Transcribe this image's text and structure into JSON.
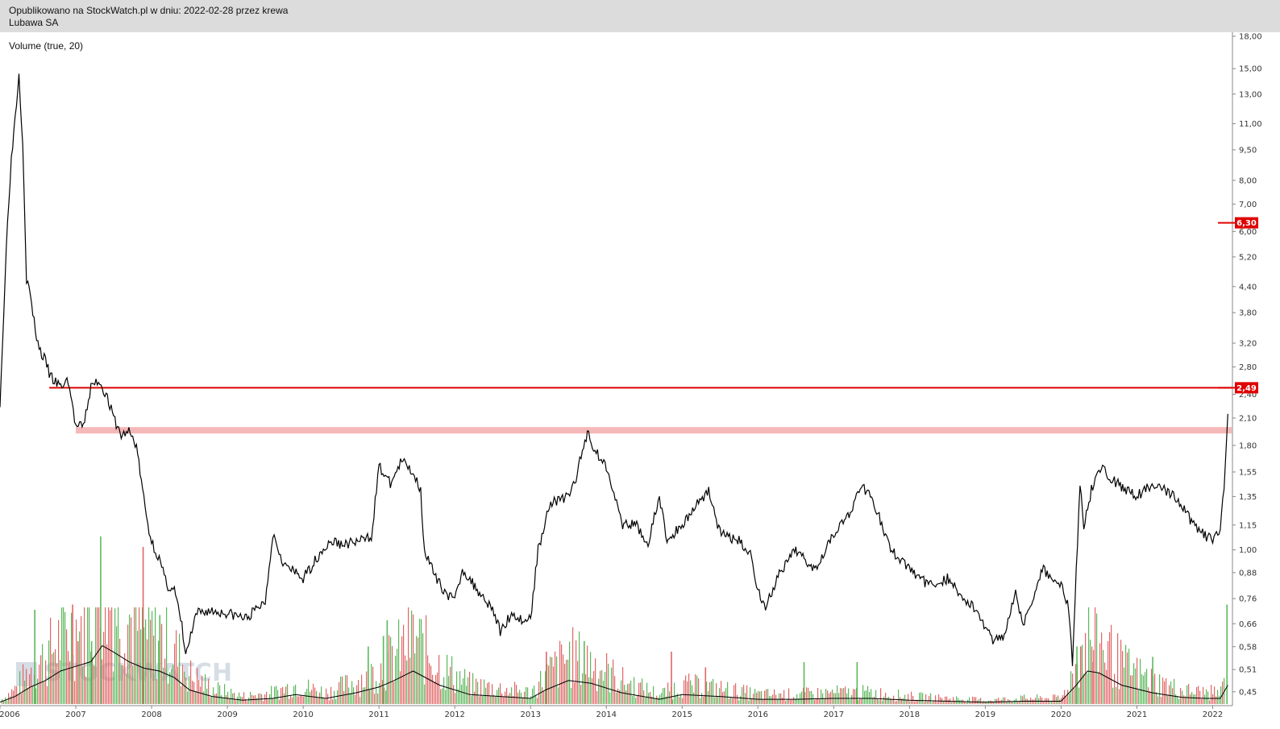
{
  "header": {
    "published": "Opublikowano na StockWatch.pl w dniu: 2022-02-28 przez krewa",
    "instrument": "Lubawa SA"
  },
  "indicator_label": "Volume (true, 20)",
  "watermark": "STOCKWATCH",
  "colors": {
    "price": "#000000",
    "volume_up": "#5cb85c",
    "volume_down": "#e06666",
    "volume_ma": "#000000",
    "resistance": "#e00000",
    "zone": "#f5b8b8",
    "badge": "#e00000"
  },
  "chart_data": {
    "type": "line",
    "title": "Lubawa SA",
    "yscale": "log",
    "ylim": [
      0.42,
      18.0
    ],
    "xlim": [
      2006.0,
      2022.25
    ],
    "y_ticks": [
      "18,00",
      "15,00",
      "13,00",
      "11,00",
      "9,50",
      "8,00",
      "7,00",
      "6,00",
      "5,20",
      "4,40",
      "3,80",
      "3,20",
      "2,80",
      "2,40",
      "2,10",
      "1,80",
      "1,55",
      "1,35",
      "1,15",
      "1,00",
      "0,88",
      "0,76",
      "0,66",
      "0,58",
      "0,51",
      "0,45"
    ],
    "x_ticks": [
      "2006",
      "2007",
      "2008",
      "2009",
      "2010",
      "2011",
      "2012",
      "2013",
      "2014",
      "2015",
      "2016",
      "2017",
      "2018",
      "2019",
      "2020",
      "2021",
      "2022"
    ],
    "series": [
      {
        "x": [
          2006.0,
          2006.05,
          2006.1,
          2006.15,
          2006.2,
          2006.25,
          2006.3,
          2006.35,
          2006.4,
          2006.45,
          2006.5,
          2006.55,
          2006.6,
          2006.65,
          2006.7,
          2006.8,
          2006.9,
          2007.0,
          2007.1,
          2007.2,
          2007.3,
          2007.4,
          2007.5,
          2007.6,
          2007.7,
          2007.8,
          2007.88,
          2007.95,
          2008.0,
          2008.1,
          2008.2,
          2008.3,
          2008.4,
          2008.45,
          2008.5,
          2008.6,
          2008.75,
          2009.0,
          2009.25,
          2009.5,
          2009.6,
          2009.75,
          2010.0,
          2010.25,
          2010.4,
          2010.5,
          2010.75,
          2010.9,
          2011.0,
          2011.15,
          2011.3,
          2011.45,
          2011.55,
          2011.6,
          2011.75,
          2011.9,
          2012.0,
          2012.1,
          2012.25,
          2012.5,
          2012.6,
          2012.75,
          2012.9,
          2013.0,
          2013.1,
          2013.25,
          2013.5,
          2013.6,
          2013.75,
          2013.85,
          2014.0,
          2014.1,
          2014.2,
          2014.4,
          2014.55,
          2014.7,
          2014.8,
          2015.0,
          2015.2,
          2015.35,
          2015.5,
          2015.75,
          2015.9,
          2016.0,
          2016.1,
          2016.25,
          2016.5,
          2016.75,
          2017.0,
          2017.25,
          2017.35,
          2017.5,
          2017.6,
          2017.75,
          2018.0,
          2018.25,
          2018.5,
          2018.75,
          2018.85,
          2019.0,
          2019.1,
          2019.25,
          2019.4,
          2019.5,
          2019.75,
          2019.9,
          2020.0,
          2020.1,
          2020.15,
          2020.2,
          2020.25,
          2020.3,
          2020.4,
          2020.5,
          2020.75,
          2021.0,
          2021.1,
          2021.25,
          2021.5,
          2021.75,
          2021.85,
          2022.0,
          2022.1,
          2022.15,
          2022.2
        ],
        "y": [
          2.3,
          3.8,
          6.5,
          9.0,
          11.5,
          14.5,
          10.0,
          4.6,
          4.2,
          3.6,
          3.2,
          3.0,
          2.9,
          2.7,
          2.6,
          2.5,
          2.6,
          2.0,
          2.0,
          2.5,
          2.6,
          2.4,
          2.1,
          1.9,
          1.95,
          1.8,
          1.4,
          1.15,
          1.05,
          0.95,
          0.82,
          0.8,
          0.65,
          0.55,
          0.6,
          0.7,
          0.71,
          0.7,
          0.68,
          0.75,
          1.1,
          0.92,
          0.85,
          1.0,
          1.05,
          1.03,
          1.05,
          1.08,
          1.6,
          1.45,
          1.65,
          1.55,
          1.4,
          1.0,
          0.85,
          0.78,
          0.75,
          0.9,
          0.82,
          0.72,
          0.63,
          0.7,
          0.67,
          0.68,
          1.0,
          1.3,
          1.35,
          1.5,
          1.95,
          1.75,
          1.6,
          1.4,
          1.15,
          1.15,
          1.03,
          1.35,
          1.05,
          1.15,
          1.3,
          1.4,
          1.1,
          1.05,
          0.98,
          0.8,
          0.72,
          0.85,
          1.0,
          0.9,
          1.1,
          1.25,
          1.45,
          1.35,
          1.2,
          1.0,
          0.9,
          0.82,
          0.85,
          0.75,
          0.72,
          0.65,
          0.6,
          0.62,
          0.8,
          0.65,
          0.9,
          0.85,
          0.82,
          0.72,
          0.52,
          0.9,
          1.45,
          1.15,
          1.4,
          1.6,
          1.45,
          1.35,
          1.4,
          1.45,
          1.35,
          1.15,
          1.1,
          1.05,
          1.12,
          1.4,
          2.15
        ]
      }
    ],
    "volume_ma": {
      "x": [
        2006.0,
        2006.2,
        2006.4,
        2006.6,
        2006.8,
        2007.0,
        2007.2,
        2007.35,
        2007.5,
        2007.7,
        2007.9,
        2008.1,
        2008.3,
        2008.5,
        2008.8,
        2009.2,
        2009.6,
        2009.9,
        2010.3,
        2010.7,
        2011.0,
        2011.2,
        2011.45,
        2011.8,
        2012.2,
        2012.6,
        2013.0,
        2013.2,
        2013.5,
        2013.8,
        2014.2,
        2014.7,
        2015.0,
        2015.5,
        2016.0,
        2016.5,
        2017.0,
        2017.5,
        2018.0,
        2018.5,
        2019.0,
        2019.5,
        2020.0,
        2020.2,
        2020.35,
        2020.5,
        2020.8,
        2021.2,
        2021.6,
        2021.9,
        2022.1,
        2022.2
      ],
      "y": [
        0.02,
        0.08,
        0.18,
        0.25,
        0.35,
        0.4,
        0.45,
        0.62,
        0.55,
        0.45,
        0.38,
        0.35,
        0.28,
        0.15,
        0.08,
        0.04,
        0.06,
        0.1,
        0.06,
        0.12,
        0.18,
        0.25,
        0.35,
        0.2,
        0.1,
        0.08,
        0.06,
        0.15,
        0.25,
        0.22,
        0.12,
        0.05,
        0.1,
        0.08,
        0.05,
        0.05,
        0.06,
        0.06,
        0.04,
        0.03,
        0.02,
        0.03,
        0.03,
        0.2,
        0.35,
        0.33,
        0.2,
        0.12,
        0.07,
        0.06,
        0.06,
        0.2
      ]
    },
    "volume_peaks": [
      {
        "x": 2006.45,
        "v": 0.9,
        "up": true
      },
      {
        "x": 2006.95,
        "v": 0.95,
        "up": false
      },
      {
        "x": 2007.02,
        "v": 0.6,
        "up": false
      },
      {
        "x": 2007.2,
        "v": 0.6,
        "up": true
      },
      {
        "x": 2007.32,
        "v": 1.6,
        "up": true
      },
      {
        "x": 2007.88,
        "v": 1.5,
        "up": false
      },
      {
        "x": 2008.1,
        "v": 0.85,
        "up": true
      },
      {
        "x": 2010.85,
        "v": 0.55,
        "up": true
      },
      {
        "x": 2011.05,
        "v": 0.65,
        "up": true
      },
      {
        "x": 2011.1,
        "v": 0.8,
        "up": true
      },
      {
        "x": 2013.2,
        "v": 0.5,
        "up": false
      },
      {
        "x": 2013.7,
        "v": 0.6,
        "up": true
      },
      {
        "x": 2014.85,
        "v": 0.5,
        "up": false
      },
      {
        "x": 2015.3,
        "v": 0.35,
        "up": false
      },
      {
        "x": 2016.6,
        "v": 0.4,
        "up": true
      },
      {
        "x": 2017.3,
        "v": 0.4,
        "up": true
      },
      {
        "x": 2020.2,
        "v": 0.55,
        "up": true
      },
      {
        "x": 2020.25,
        "v": 0.55,
        "up": false
      },
      {
        "x": 2020.4,
        "v": 0.4,
        "up": false
      },
      {
        "x": 2021.2,
        "v": 0.45,
        "up": true
      },
      {
        "x": 2022.18,
        "v": 0.95,
        "up": true
      }
    ],
    "hlines": [
      {
        "value": 2.49,
        "label": "2,49",
        "x_start": 2006.65,
        "style": "line"
      },
      {
        "value": 1.96,
        "label": "",
        "x_start": 2007.0,
        "style": "zone"
      }
    ],
    "badges": [
      {
        "value": 6.3,
        "label": "6,30"
      },
      {
        "value": 2.49,
        "label": "2,49"
      }
    ],
    "grid": false,
    "legend": "none"
  }
}
